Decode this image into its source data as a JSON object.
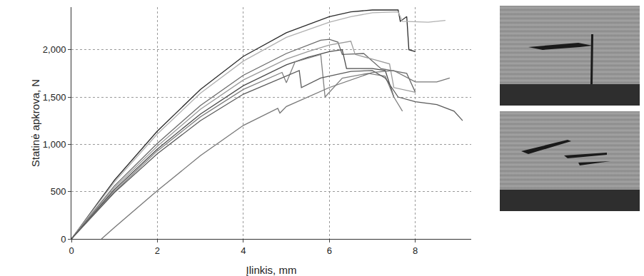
{
  "chart_data": {
    "type": "line",
    "xlabel": "Įlinkis, mm",
    "ylabel": "Statinė apkrova, N",
    "xlim": [
      0,
      9.3
    ],
    "xticks": [
      0,
      2,
      4,
      6,
      8
    ],
    "ylim": [
      0,
      2450
    ],
    "yticks": [
      0,
      500,
      {
        "value": 1000,
        "label": "1,000"
      },
      {
        "value": 1500,
        "label": "1,500"
      },
      {
        "value": 2000,
        "label": "2,000"
      }
    ],
    "grid": true,
    "series": [
      {
        "color": "#2a2a2a",
        "x": [
          0,
          1,
          2,
          3,
          4,
          5,
          6,
          6.5,
          7,
          7.6,
          7.65,
          7.8,
          7.85,
          8
        ],
        "values": [
          0,
          620,
          1140,
          1580,
          1930,
          2180,
          2350,
          2400,
          2420,
          2420,
          2300,
          2350,
          2000,
          1980
        ]
      },
      {
        "color": "#b0b0b0",
        "x": [
          0,
          1,
          2,
          3,
          4,
          5,
          6,
          6.5,
          7,
          7.6,
          7.7,
          8.3,
          8.7
        ],
        "values": [
          0,
          600,
          1110,
          1540,
          1880,
          2130,
          2290,
          2350,
          2390,
          2400,
          2300,
          2290,
          2310
        ]
      },
      {
        "color": "#6a6a6a",
        "x": [
          0,
          1,
          2,
          3,
          4,
          5,
          5.8,
          6,
          6.2,
          6.3,
          6.8,
          7.2,
          7.8,
          8
        ],
        "values": [
          0,
          560,
          1010,
          1410,
          1730,
          1960,
          2100,
          2110,
          2080,
          1950,
          1960,
          1800,
          1750,
          1550
        ]
      },
      {
        "color": "#9a9a9a",
        "x": [
          0,
          1,
          2,
          3,
          4,
          5,
          5.5,
          6,
          6.5,
          6.6,
          7,
          7.4,
          7.5,
          8
        ],
        "values": [
          0,
          540,
          980,
          1370,
          1680,
          1900,
          1980,
          2050,
          2090,
          1950,
          1900,
          1850,
          1600,
          1550
        ]
      },
      {
        "color": "#4a4a4a",
        "x": [
          0,
          1,
          2,
          3,
          4,
          5,
          5.5,
          6,
          6.3,
          6.4,
          7,
          7.3,
          7.5
        ],
        "values": [
          0,
          520,
          950,
          1320,
          1620,
          1840,
          1920,
          1980,
          2000,
          1800,
          1800,
          1780,
          1500
        ]
      },
      {
        "color": "#808080",
        "x": [
          0,
          1,
          2,
          3,
          4,
          4.9,
          5,
          5.2,
          5.8,
          5.9,
          6.3,
          6.9,
          7.3,
          7.5,
          7.7
        ],
        "values": [
          0,
          500,
          930,
          1290,
          1580,
          1760,
          1650,
          1870,
          1950,
          1500,
          1700,
          1750,
          1720,
          1500,
          1350
        ]
      },
      {
        "color": "#5a5a5a",
        "x": [
          0,
          1,
          2,
          3,
          4,
          5,
          5.3,
          5.35,
          5.8,
          6.5,
          7,
          7.3,
          7.6,
          8,
          8.5,
          8.9,
          9.1
        ],
        "values": [
          0,
          490,
          900,
          1250,
          1530,
          1720,
          1780,
          1600,
          1700,
          1770,
          1780,
          1700,
          1500,
          1450,
          1420,
          1350,
          1250
        ]
      },
      {
        "color": "#777777",
        "x": [
          0.7,
          1,
          2,
          3,
          4,
          4.8,
          4.85,
          5,
          6,
          7,
          7.5,
          8,
          8.5,
          8.8
        ],
        "values": [
          0,
          120,
          510,
          880,
          1200,
          1380,
          1330,
          1400,
          1600,
          1760,
          1780,
          1660,
          1660,
          1700
        ]
      }
    ]
  }
}
